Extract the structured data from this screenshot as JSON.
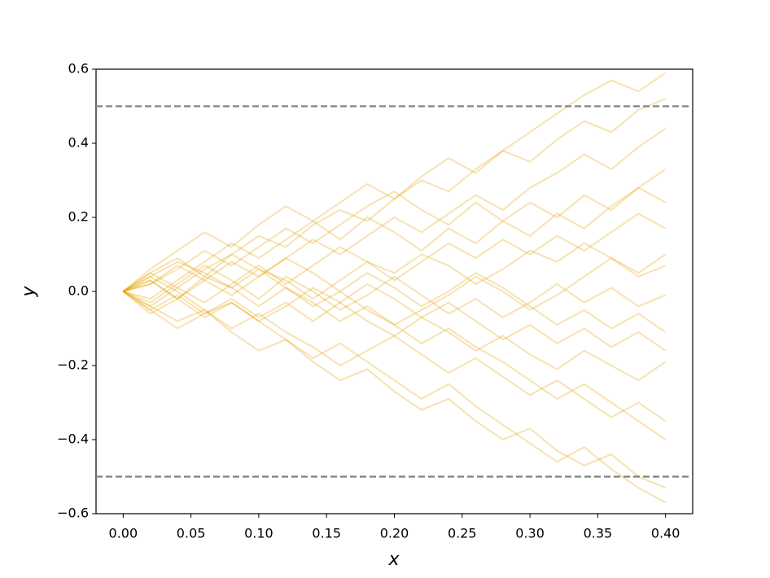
{
  "chart_data": {
    "type": "line",
    "xlabel": "x",
    "ylabel": "y",
    "color": "#e6a000",
    "alpha": 0.3,
    "x": [
      0,
      0.02,
      0.04,
      0.06,
      0.08,
      0.1,
      0.12,
      0.14,
      0.16,
      0.18,
      0.2,
      0.22,
      0.24,
      0.26,
      0.28,
      0.3,
      0.32,
      0.34,
      0.36,
      0.38,
      0.4
    ],
    "series": [
      {
        "values": [
          0,
          0.05,
          0.09,
          0.04,
          0.1,
          0.15,
          0.12,
          0.18,
          0.22,
          0.19,
          0.25,
          0.3,
          0.27,
          0.33,
          0.38,
          0.35,
          0.41,
          0.46,
          0.43,
          0.49,
          0.52
        ]
      },
      {
        "values": [
          0,
          -0.04,
          -0.08,
          -0.05,
          -0.11,
          -0.16,
          -0.13,
          -0.19,
          -0.24,
          -0.21,
          -0.27,
          -0.32,
          -0.29,
          -0.35,
          -0.4,
          -0.37,
          -0.43,
          -0.47,
          -0.44,
          -0.5,
          -0.53
        ]
      },
      {
        "values": [
          0,
          0.03,
          -0.02,
          0.04,
          0.01,
          0.06,
          0.03,
          -0.02,
          0.03,
          0.08,
          0.05,
          0.1,
          0.07,
          0.02,
          0.06,
          0.11,
          0.08,
          0.13,
          0.09,
          0.04,
          0.07
        ]
      },
      {
        "values": [
          0,
          -0.05,
          -0.01,
          -0.06,
          -0.03,
          -0.08,
          -0.04,
          0.01,
          -0.03,
          -0.08,
          -0.12,
          -0.07,
          -0.11,
          -0.16,
          -0.12,
          -0.17,
          -0.21,
          -0.16,
          -0.2,
          -0.24,
          -0.19
        ]
      },
      {
        "values": [
          0,
          0.06,
          0.11,
          0.16,
          0.12,
          0.18,
          0.23,
          0.19,
          0.14,
          0.2,
          0.16,
          0.11,
          0.17,
          0.13,
          0.19,
          0.24,
          0.2,
          0.26,
          0.22,
          0.28,
          0.33
        ]
      },
      {
        "values": [
          0,
          -0.03,
          0.02,
          0.07,
          0.03,
          -0.02,
          0.04,
          0.0,
          -0.05,
          -0.01,
          0.04,
          -0.01,
          -0.06,
          -0.02,
          -0.07,
          -0.03,
          0.02,
          -0.03,
          0.01,
          -0.04,
          -0.01
        ]
      },
      {
        "values": [
          0,
          0.04,
          0.0,
          -0.05,
          -0.1,
          -0.06,
          -0.11,
          -0.15,
          -0.2,
          -0.16,
          -0.12,
          -0.17,
          -0.22,
          -0.18,
          -0.23,
          -0.28,
          -0.24,
          -0.29,
          -0.34,
          -0.3,
          -0.35
        ]
      },
      {
        "values": [
          0,
          0.02,
          0.07,
          0.03,
          0.08,
          0.04,
          0.09,
          0.14,
          0.1,
          0.15,
          0.2,
          0.16,
          0.21,
          0.26,
          0.22,
          0.28,
          0.32,
          0.37,
          0.33,
          0.39,
          0.44
        ]
      },
      {
        "values": [
          0,
          -0.06,
          -0.02,
          0.03,
          -0.01,
          0.04,
          0.09,
          0.05,
          0.0,
          0.05,
          0.01,
          -0.04,
          0.0,
          0.05,
          0.01,
          -0.04,
          -0.09,
          -0.05,
          -0.1,
          -0.06,
          -0.11
        ]
      },
      {
        "values": [
          0,
          0.05,
          0.01,
          0.06,
          0.1,
          0.06,
          0.01,
          -0.04,
          0.0,
          -0.05,
          -0.09,
          -0.14,
          -0.1,
          -0.15,
          -0.19,
          -0.24,
          -0.29,
          -0.25,
          -0.3,
          -0.35,
          -0.4
        ]
      },
      {
        "values": [
          0,
          -0.02,
          0.03,
          0.08,
          0.13,
          0.09,
          0.14,
          0.19,
          0.24,
          0.29,
          0.25,
          0.31,
          0.36,
          0.32,
          0.38,
          0.43,
          0.48,
          0.53,
          0.57,
          0.54,
          0.59
        ]
      },
      {
        "values": [
          0,
          0.03,
          -0.02,
          -0.07,
          -0.03,
          -0.08,
          -0.13,
          -0.18,
          -0.14,
          -0.19,
          -0.24,
          -0.29,
          -0.25,
          -0.31,
          -0.36,
          -0.41,
          -0.46,
          -0.42,
          -0.48,
          -0.53,
          -0.57
        ]
      },
      {
        "values": [
          0,
          -0.04,
          0.01,
          -0.03,
          0.02,
          0.07,
          0.02,
          0.07,
          0.12,
          0.08,
          0.03,
          0.08,
          0.13,
          0.09,
          0.14,
          0.1,
          0.15,
          0.11,
          0.16,
          0.21,
          0.17
        ]
      },
      {
        "values": [
          0,
          0.04,
          0.08,
          0.05,
          0.01,
          -0.04,
          0.01,
          -0.03,
          -0.08,
          -0.04,
          -0.09,
          -0.05,
          -0.01,
          0.04,
          0.0,
          -0.05,
          -0.01,
          0.04,
          0.09,
          0.05,
          0.1
        ]
      },
      {
        "values": [
          0,
          -0.05,
          -0.1,
          -0.06,
          -0.02,
          -0.07,
          -0.03,
          -0.08,
          -0.03,
          0.02,
          -0.02,
          -0.07,
          -0.03,
          -0.08,
          -0.13,
          -0.09,
          -0.14,
          -0.1,
          -0.15,
          -0.11,
          -0.16
        ]
      },
      {
        "values": [
          0,
          0.02,
          0.06,
          0.11,
          0.07,
          0.12,
          0.17,
          0.13,
          0.18,
          0.23,
          0.27,
          0.22,
          0.18,
          0.24,
          0.19,
          0.15,
          0.21,
          0.17,
          0.23,
          0.28,
          0.24
        ]
      }
    ],
    "hlines": [
      0.5,
      -0.5
    ],
    "hline_color": "#808080",
    "xlim": [
      -0.02,
      0.42
    ],
    "ylim": [
      -0.6,
      0.6
    ],
    "xticks": [
      {
        "value": 0,
        "label": "0.00"
      },
      {
        "value": 0.05,
        "label": "0.05"
      },
      {
        "value": 0.1,
        "label": "0.10"
      },
      {
        "value": 0.15,
        "label": "0.15"
      },
      {
        "value": 0.2,
        "label": "0.20"
      },
      {
        "value": 0.25,
        "label": "0.25"
      },
      {
        "value": 0.3,
        "label": "0.30"
      },
      {
        "value": 0.35,
        "label": "0.35"
      },
      {
        "value": 0.4,
        "label": "0.40"
      }
    ],
    "yticks": [
      {
        "value": -0.6,
        "label": "−0.6"
      },
      {
        "value": -0.4,
        "label": "−0.4"
      },
      {
        "value": -0.2,
        "label": "−0.2"
      },
      {
        "value": 0,
        "label": "0.0"
      },
      {
        "value": 0.2,
        "label": "0.2"
      },
      {
        "value": 0.4,
        "label": "0.4"
      },
      {
        "value": 0.6,
        "label": "0.6"
      }
    ]
  }
}
